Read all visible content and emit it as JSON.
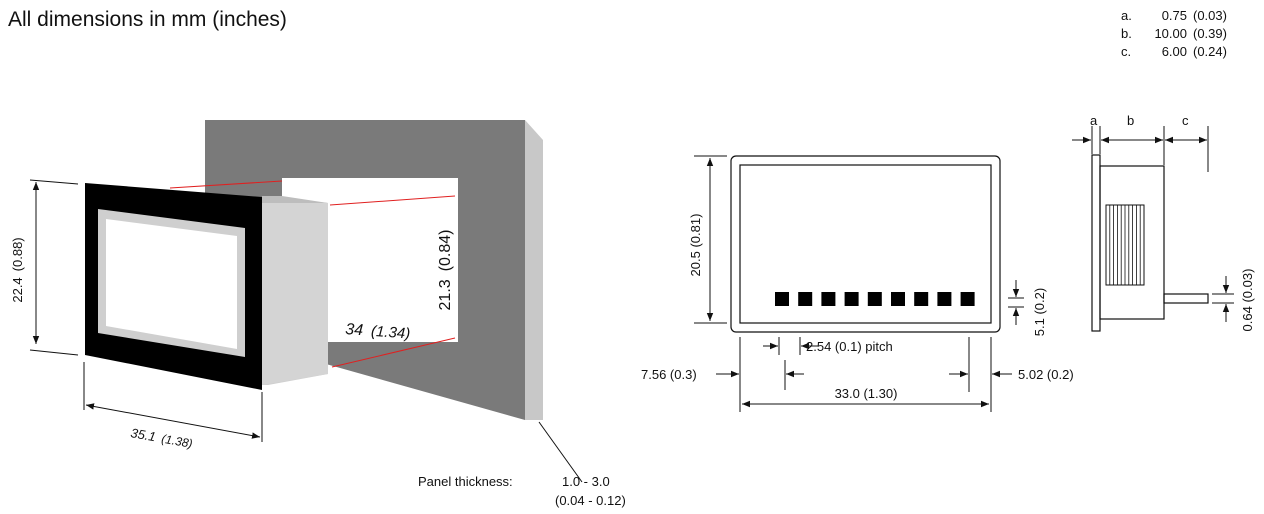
{
  "title": "All dimensions in mm (inches)",
  "legend": [
    {
      "key": "a.",
      "mm": "0.75",
      "in": "(0.03)"
    },
    {
      "key": "b.",
      "mm": "10.00",
      "in": "(0.39)"
    },
    {
      "key": "c.",
      "mm": "6.00",
      "in": "(0.24)"
    }
  ],
  "left_view": {
    "height_mm": "22.4",
    "height_in": "(0.88)",
    "width_mm": "35.1",
    "width_in": "(1.38)",
    "cutout_h_mm": "21.3",
    "cutout_h_in": "(0.84)",
    "cutout_w_mm": "34",
    "cutout_w_in": "(1.34)",
    "panel_label": "Panel  thickness:",
    "panel_mm": "1.0  -  3.0",
    "panel_in": "(0.04  -  0.12)"
  },
  "front_view": {
    "height": "20.5  (0.81)",
    "pin_h": "5.1  (0.2)",
    "pitch": "2.54  (0.1)  pitch",
    "left_off": "7.56  (0.3)",
    "right_off": "5.02  (0.2)",
    "width": "33.0  (1.30)",
    "pin_count": 9
  },
  "side_view": {
    "a": "a",
    "b": "b",
    "c": "c",
    "pin": "0.64  (0.03)"
  },
  "colors": {
    "panel": "#7a7a7a",
    "panel_edge": "#c8c8c8",
    "bezel": "#000000",
    "window_border": "#cfcfcf",
    "body": "#d0d0d0",
    "cut_line": "#e02020"
  }
}
